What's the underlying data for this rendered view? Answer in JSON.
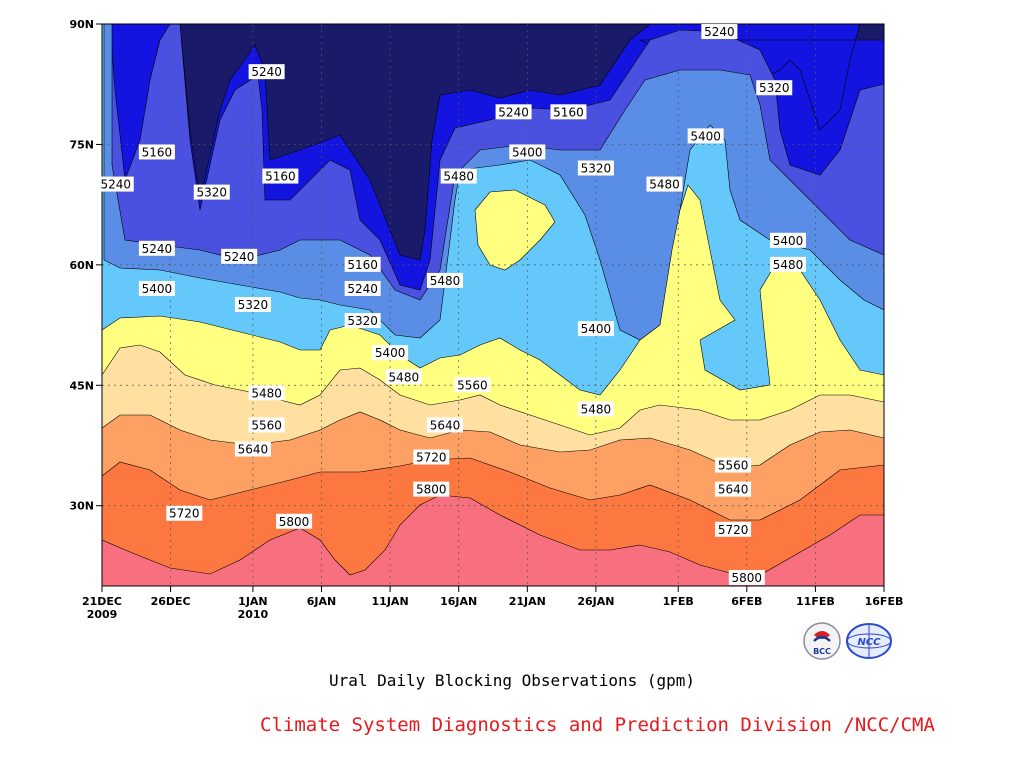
{
  "chart_data": {
    "type": "contour",
    "title": "Ural Daily Blocking Observations (gpm)",
    "xlabel": "",
    "ylabel": "",
    "x_ticks": [
      "21DEC 2009",
      "26DEC",
      "1JAN 2010",
      "6JAN",
      "11JAN",
      "16JAN",
      "21JAN",
      "26JAN",
      "1FEB",
      "6FEB",
      "11FEB",
      "16FEB"
    ],
    "x_range": [
      "2009-12-21",
      "2010-02-16"
    ],
    "y_ticks": [
      "30N",
      "45N",
      "60N",
      "75N",
      "90N"
    ],
    "y_range": [
      20,
      90
    ],
    "grid": true,
    "levels": [
      5160,
      5240,
      5320,
      5400,
      5480,
      5560,
      5640,
      5720,
      5800
    ],
    "colors": {
      "below_5160": "#1a1a6b",
      "5160_5240": "#1414e0",
      "5240_5320": "#4a50e0",
      "5320_5400": "#5a8ee6",
      "5400_5480": "#64c8fa",
      "5480_5560": "#ffff80",
      "5560_5640": "#ffe0a0",
      "5640_5720": "#fca064",
      "5720_5800": "#fc7840",
      "above_5800": "#f87080"
    },
    "contour_labels": [
      {
        "text": "5240",
        "date": "2010-02-04",
        "lat": 89
      },
      {
        "text": "5240",
        "date": "2010-01-02",
        "lat": 84
      },
      {
        "text": "5320",
        "date": "2010-02-08",
        "lat": 82
      },
      {
        "text": "5240",
        "date": "2010-01-20",
        "lat": 79
      },
      {
        "text": "5160",
        "date": "2010-01-24",
        "lat": 79
      },
      {
        "text": "5160",
        "date": "2009-12-25",
        "lat": 74
      },
      {
        "text": "5400",
        "date": "2010-01-21",
        "lat": 74
      },
      {
        "text": "5400",
        "date": "2010-02-03",
        "lat": 76
      },
      {
        "text": "5160",
        "date": "2010-01-03",
        "lat": 71
      },
      {
        "text": "5320",
        "date": "2010-01-26",
        "lat": 72
      },
      {
        "text": "5480",
        "date": "2010-01-16",
        "lat": 71
      },
      {
        "text": "5240",
        "date": "2009-12-22",
        "lat": 70
      },
      {
        "text": "5320",
        "date": "2009-12-29",
        "lat": 69
      },
      {
        "text": "5480",
        "date": "2010-01-31",
        "lat": 70
      },
      {
        "text": "5240",
        "date": "2009-12-25",
        "lat": 62
      },
      {
        "text": "5240",
        "date": "2009-12-31",
        "lat": 61
      },
      {
        "text": "5400",
        "date": "2010-02-09",
        "lat": 63
      },
      {
        "text": "5160",
        "date": "2010-01-09",
        "lat": 60
      },
      {
        "text": "5480",
        "date": "2010-02-09",
        "lat": 60
      },
      {
        "text": "5480",
        "date": "2010-01-15",
        "lat": 58
      },
      {
        "text": "5400",
        "date": "2009-12-25",
        "lat": 57
      },
      {
        "text": "5240",
        "date": "2010-01-09",
        "lat": 57
      },
      {
        "text": "5320",
        "date": "2010-01-01",
        "lat": 55
      },
      {
        "text": "5320",
        "date": "2010-01-09",
        "lat": 53
      },
      {
        "text": "5400",
        "date": "2010-01-26",
        "lat": 52
      },
      {
        "text": "5400",
        "date": "2010-01-11",
        "lat": 49
      },
      {
        "text": "5480",
        "date": "2010-01-12",
        "lat": 46
      },
      {
        "text": "5560",
        "date": "2010-01-17",
        "lat": 45
      },
      {
        "text": "5480",
        "date": "2010-01-02",
        "lat": 44
      },
      {
        "text": "5480",
        "date": "2010-01-26",
        "lat": 42
      },
      {
        "text": "5560",
        "date": "2010-01-02",
        "lat": 40
      },
      {
        "text": "5640",
        "date": "2010-01-15",
        "lat": 40
      },
      {
        "text": "5640",
        "date": "2010-01-01",
        "lat": 37
      },
      {
        "text": "5720",
        "date": "2010-01-14",
        "lat": 36
      },
      {
        "text": "5560",
        "date": "2010-02-05",
        "lat": 35
      },
      {
        "text": "5800",
        "date": "2010-01-14",
        "lat": 32
      },
      {
        "text": "5640",
        "date": "2010-02-05",
        "lat": 32
      },
      {
        "text": "5720",
        "date": "2009-12-27",
        "lat": 29
      },
      {
        "text": "5800",
        "date": "2010-01-04",
        "lat": 28
      },
      {
        "text": "5720",
        "date": "2010-02-05",
        "lat": 27
      },
      {
        "text": "5800",
        "date": "2010-02-06",
        "lat": 21
      }
    ]
  },
  "footer": {
    "credit": "Climate System Diagnostics and Prediction Division /NCC/CMA"
  },
  "logos": {
    "left": {
      "text": "BCC",
      "color": "#1a3a9a"
    },
    "right": {
      "text": "NCC",
      "color": "#2a4ad0"
    }
  }
}
